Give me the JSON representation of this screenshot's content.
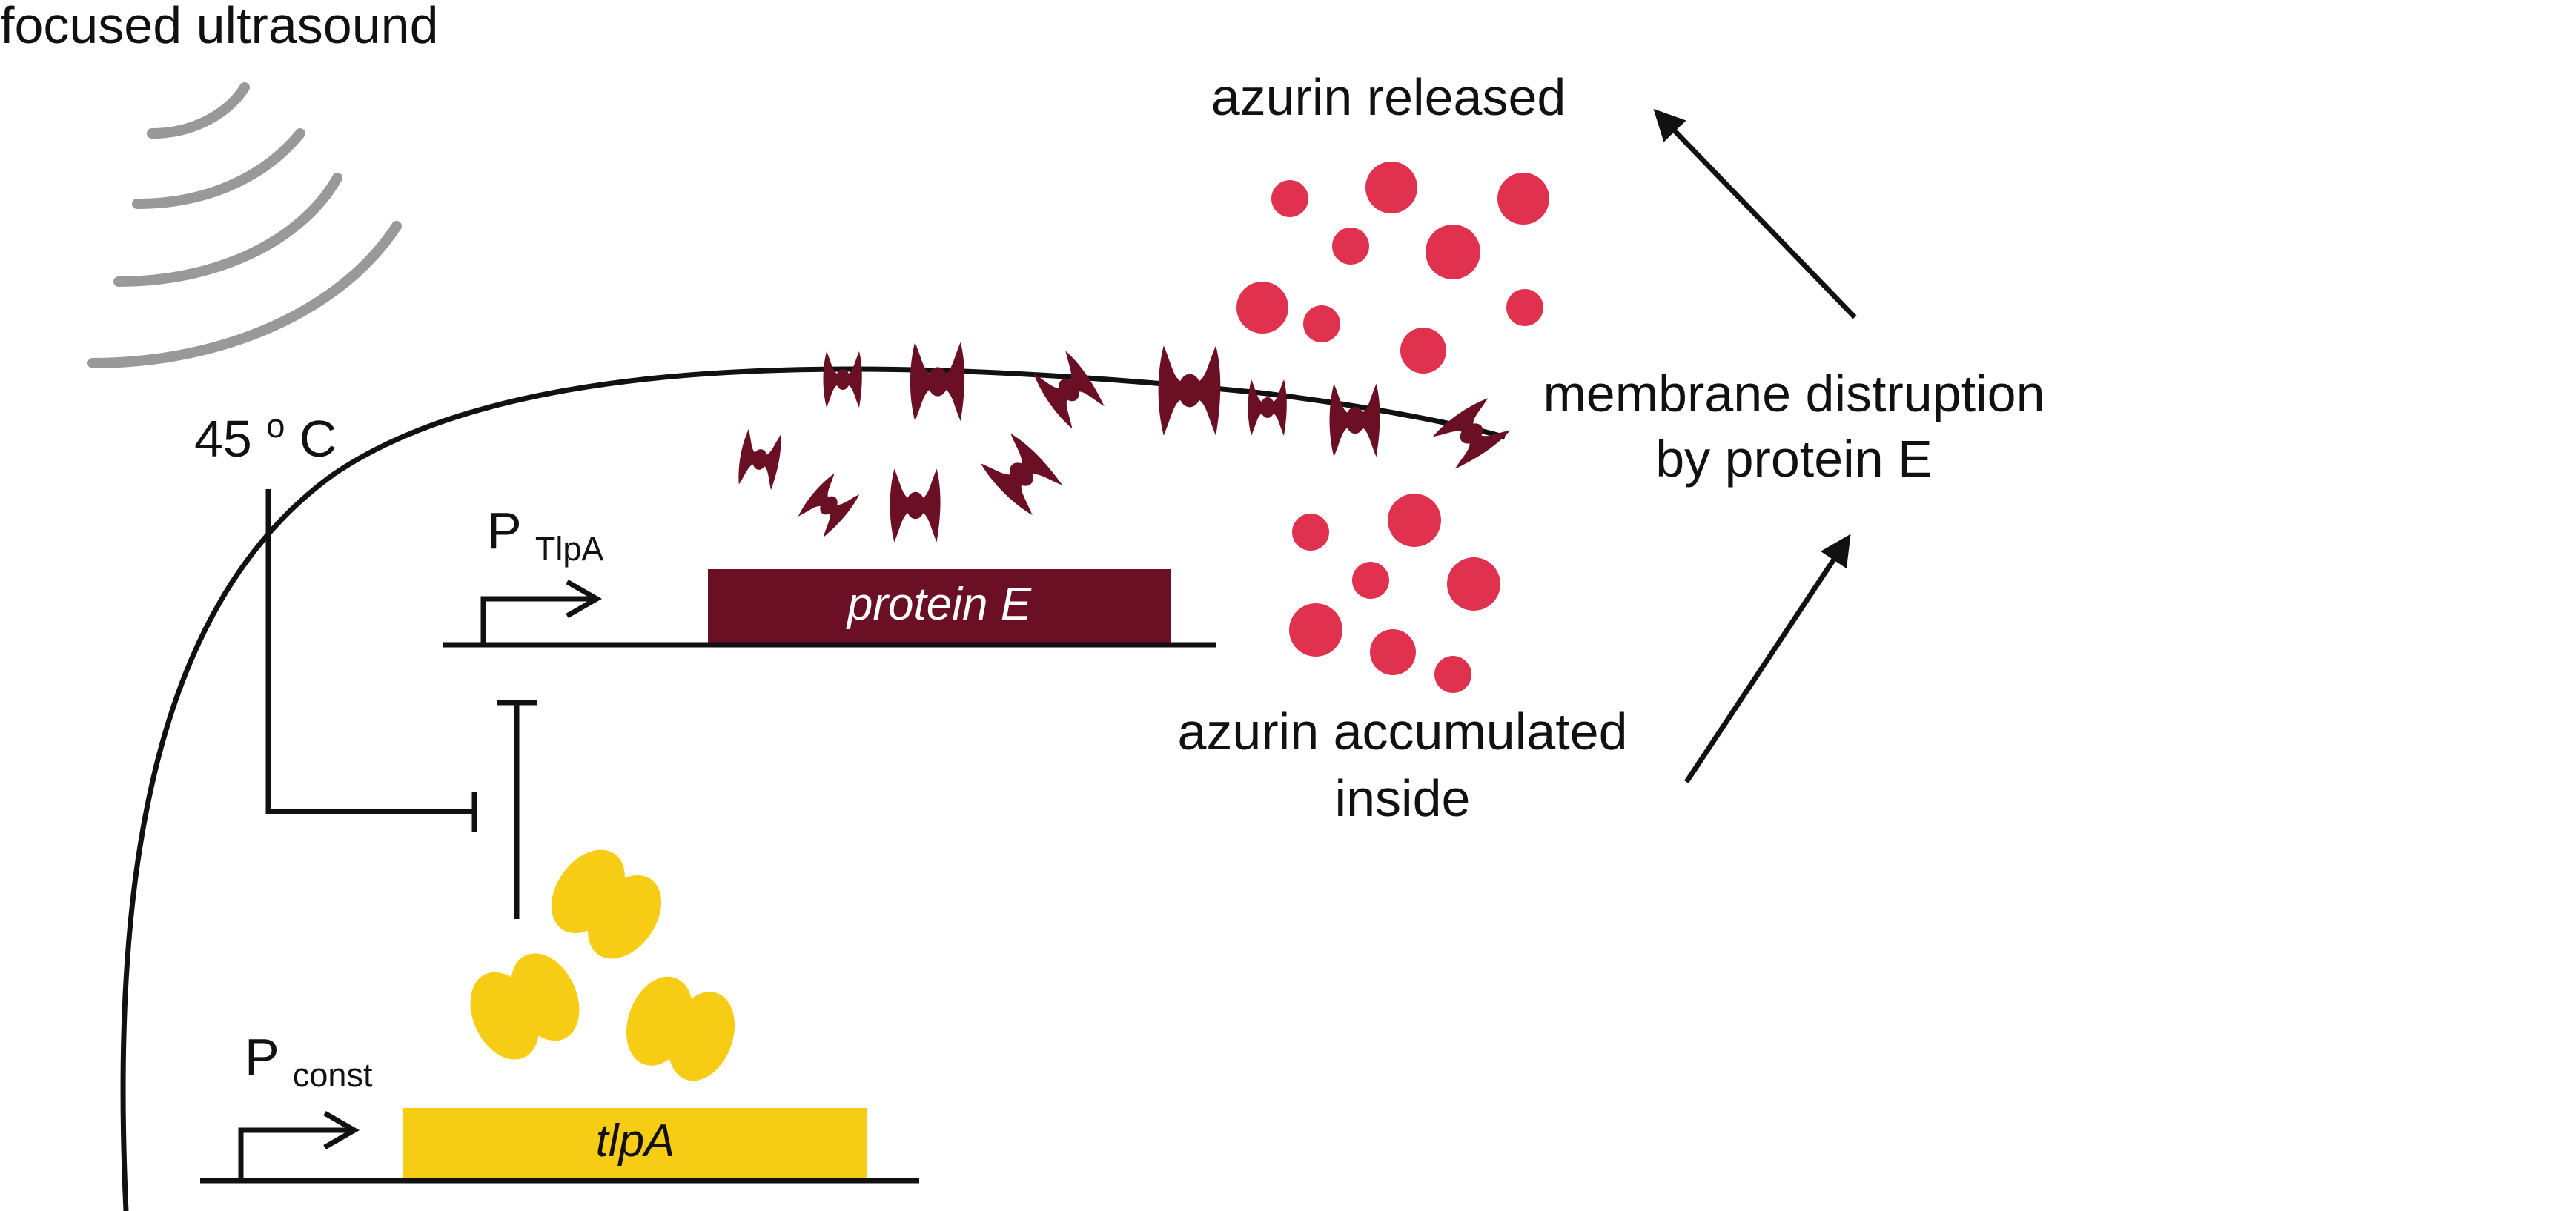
{
  "labels": {
    "focused_ultrasound": "focused ultrasound",
    "temperature_value": "45 ",
    "temperature_sup": "o",
    "temperature_unit": "C",
    "azurin_released": "azurin released",
    "membrane_line1": "membrane distruption",
    "membrane_line2": "by protein E",
    "azurin_accumulated_line1": "azurin accumulated",
    "azurin_accumulated_line2": "inside",
    "promoter_tlpa_main": "P",
    "promoter_tlpa_sub": "TlpA",
    "promoter_const_main": "P",
    "promoter_const_sub": "const"
  },
  "genes": {
    "protein_e": "protein E",
    "tlpa": "tlpA"
  },
  "colors": {
    "protein_e": "#6b0f24",
    "tlpa": "#f6cc14",
    "azurin": "#e0314e",
    "ultrasound_waves": "#999999",
    "line": "#111111",
    "protein_e_label": "#ffffff",
    "tlpa_label": "#111111"
  },
  "icons": {
    "ultrasound": "ultrasound-wave-icon",
    "protein_e": "protein-e-dimer-icon",
    "tlpa": "tlpa-dimer-icon",
    "azurin": "azurin-dot-icon"
  }
}
